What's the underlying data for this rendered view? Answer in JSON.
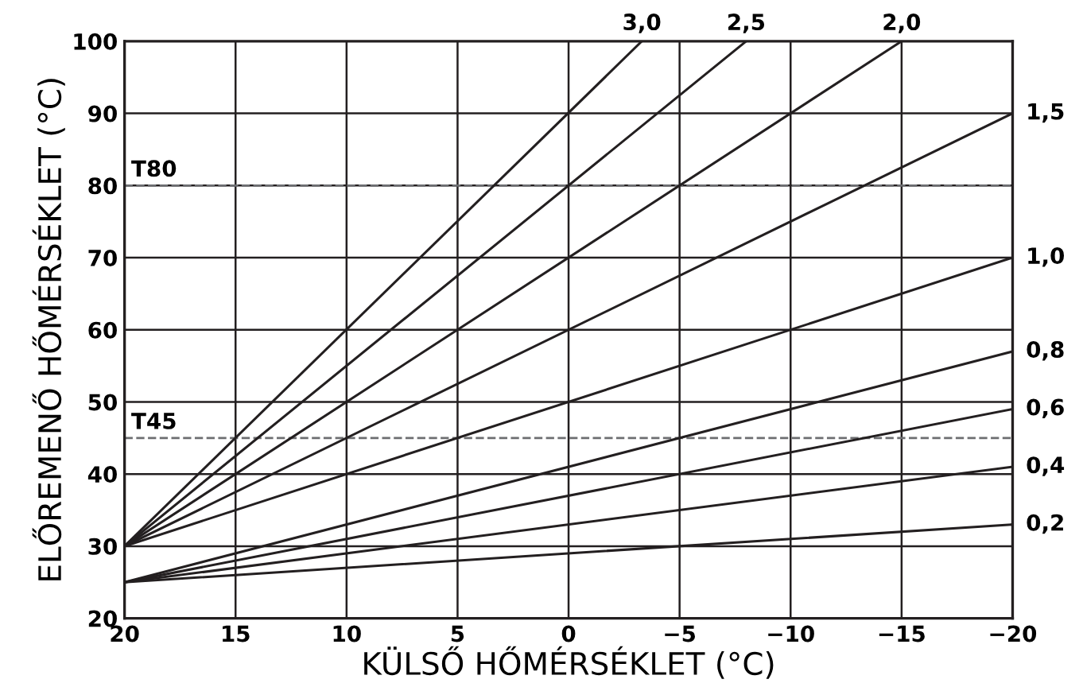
{
  "chart_data": {
    "type": "line",
    "xlabel": "KÜLSŐ HŐMÉRSÉKLET (°C)",
    "ylabel": "ELŐREMENŐ HŐMÉRSÉKLET (°C)",
    "xlim": [
      20,
      -20
    ],
    "ylim": [
      20,
      100
    ],
    "xticks": [
      20,
      15,
      10,
      5,
      0,
      {
        "value": -5,
        "label": "−5"
      },
      {
        "value": -10,
        "label": "−10"
      },
      {
        "value": -15,
        "label": "−15"
      },
      {
        "value": -20,
        "label": "−20"
      }
    ],
    "yticks": [
      20,
      30,
      40,
      50,
      60,
      70,
      80,
      90,
      100
    ],
    "grid": true,
    "legend": false,
    "marker": "none",
    "line_style": "solid",
    "series": [
      {
        "name": "3,0",
        "color": "#231f20",
        "x": [
          20,
          -3.3
        ],
        "values": [
          30,
          100
        ]
      },
      {
        "name": "2,5",
        "color": "#231f20",
        "x": [
          20,
          -8
        ],
        "values": [
          30,
          100
        ]
      },
      {
        "name": "2,0",
        "color": "#231f20",
        "x": [
          20,
          -15
        ],
        "values": [
          30,
          100
        ]
      },
      {
        "name": "1,5",
        "color": "#231f20",
        "x": [
          20,
          -20
        ],
        "values": [
          30,
          90
        ]
      },
      {
        "name": "1,0",
        "color": "#231f20",
        "x": [
          20,
          -20
        ],
        "values": [
          30,
          70
        ]
      },
      {
        "name": "0,8",
        "color": "#231f20",
        "x": [
          20,
          -20
        ],
        "values": [
          25,
          57
        ]
      },
      {
        "name": "0,6",
        "color": "#231f20",
        "x": [
          20,
          -20
        ],
        "values": [
          25,
          49
        ]
      },
      {
        "name": "0,4",
        "color": "#231f20",
        "x": [
          20,
          -20
        ],
        "values": [
          25,
          41
        ]
      },
      {
        "name": "0,2",
        "color": "#231f20",
        "x": [
          20,
          -20
        ],
        "values": [
          25,
          33
        ]
      }
    ],
    "ref_lines": [
      {
        "axis": "y",
        "value": 80,
        "label": "T80",
        "color": "#6d6e71",
        "line_style": "dashed"
      },
      {
        "axis": "y",
        "value": 45,
        "label": "T45",
        "color": "#6d6e71",
        "line_style": "dashed"
      }
    ]
  }
}
